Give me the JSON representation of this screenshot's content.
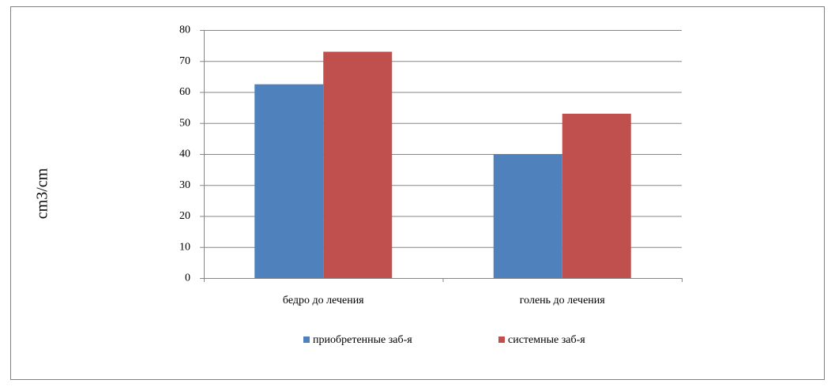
{
  "chart_data": {
    "type": "bar",
    "y_label": "cm3/cm",
    "categories": [
      "бедро до лечения",
      "голень до лечения"
    ],
    "series": [
      {
        "name": "приобретенные заб-я",
        "color": "#4f81bd",
        "values": [
          62.5,
          40
        ]
      },
      {
        "name": "системные заб-я",
        "color": "#c0504d",
        "values": [
          73,
          53
        ]
      }
    ],
    "ylim": [
      0,
      80
    ],
    "yticks": [
      0,
      10,
      20,
      30,
      40,
      50,
      60,
      70,
      80
    ],
    "grid": true,
    "legend": "bottom"
  }
}
